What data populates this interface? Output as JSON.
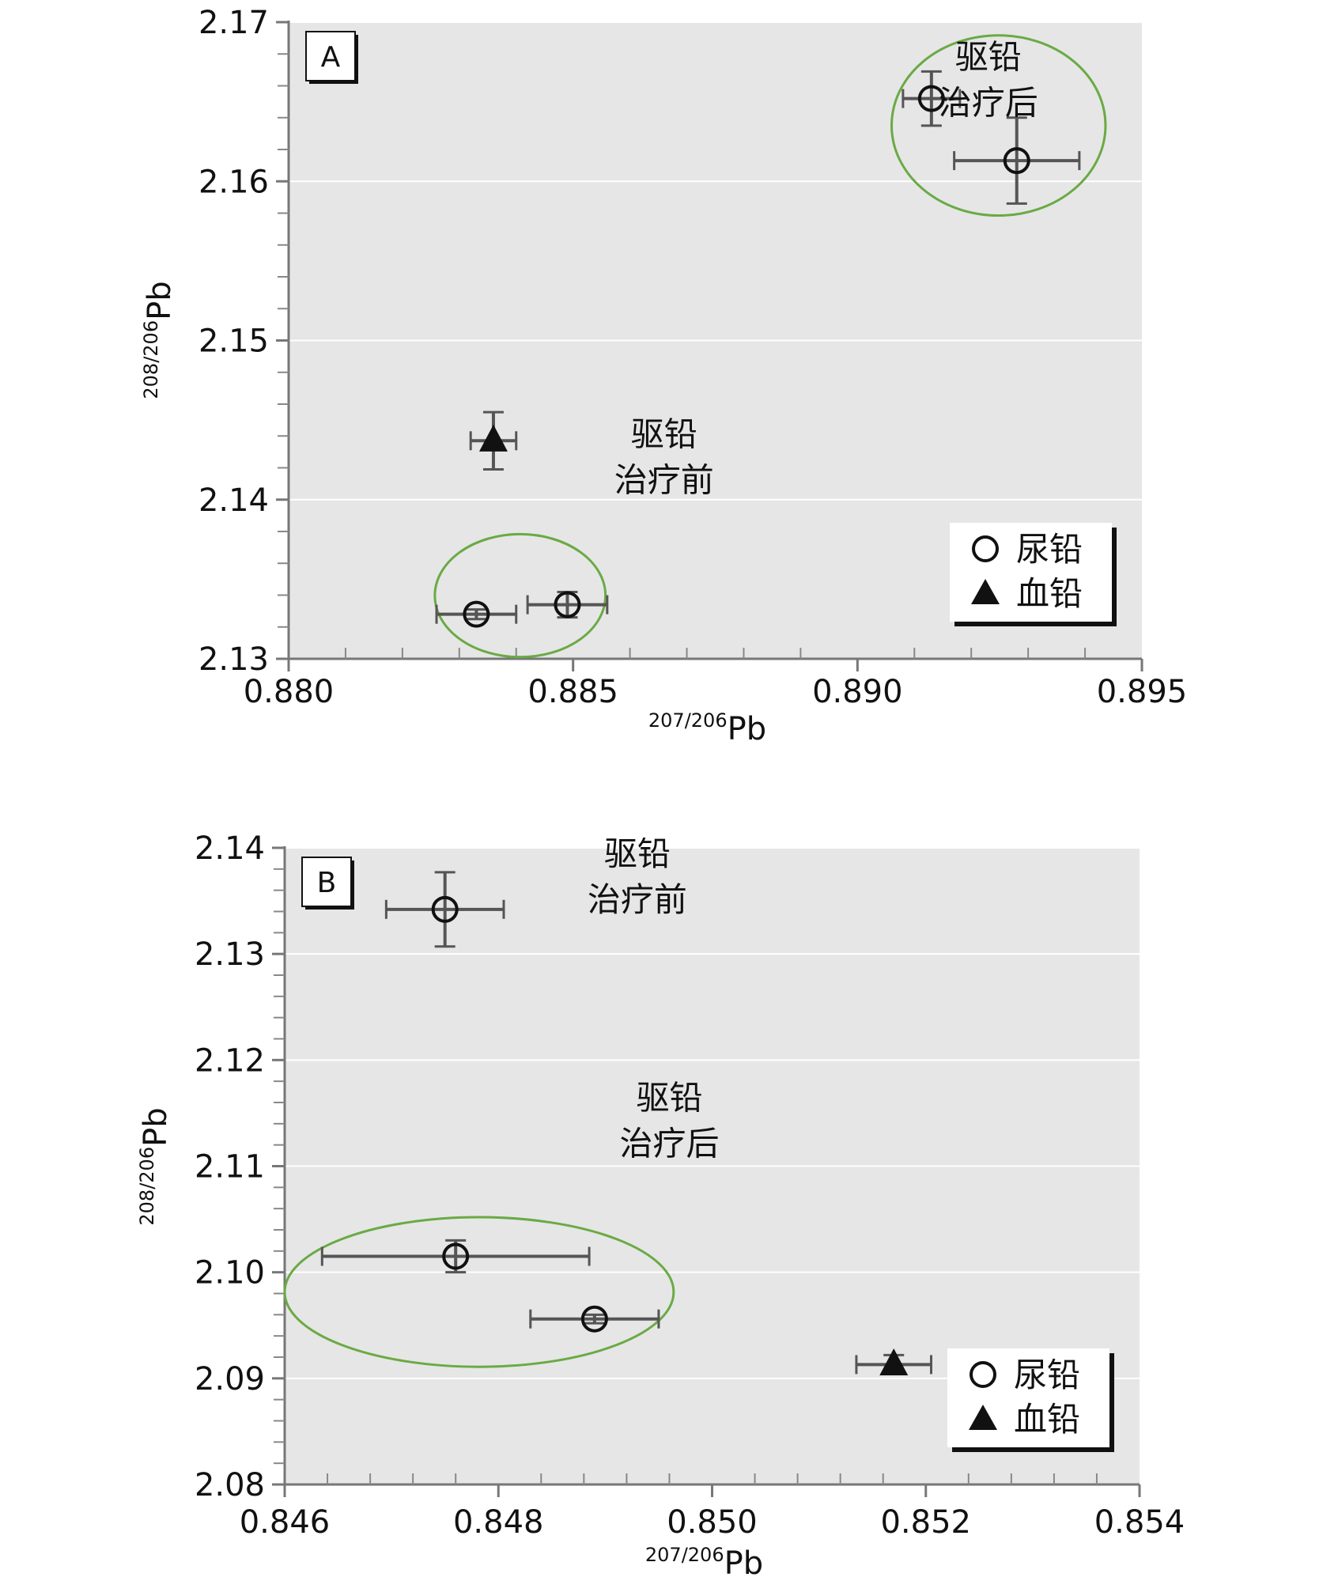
{
  "chart_data": [
    {
      "type": "scatter",
      "panel_label": "A",
      "xlabel_sup": "207/206",
      "xlabel_main": "Pb",
      "ylabel_sup": "208/206",
      "ylabel_main": "Pb",
      "xlim": [
        0.88,
        0.895
      ],
      "ylim": [
        2.13,
        2.17
      ],
      "xticks": [
        "0.880",
        "0.885",
        "0.890",
        "0.895"
      ],
      "yticks": [
        "2.13",
        "2.14",
        "2.15",
        "2.16",
        "2.17"
      ],
      "grid": true,
      "legend_position": "bottom-right",
      "legend": [
        {
          "marker": "open-circle",
          "label": "尿铅"
        },
        {
          "marker": "filled-triangle",
          "label": "血铅"
        }
      ],
      "series": [
        {
          "name": "尿铅",
          "marker": "open-circle",
          "points": [
            {
              "x": 0.8913,
              "y": 2.1652,
              "xerr": 0.0005,
              "yerr": 0.0017
            },
            {
              "x": 0.8928,
              "y": 2.1613,
              "xerr": 0.0011,
              "yerr": 0.0027
            },
            {
              "x": 0.8833,
              "y": 2.1328,
              "xerr": 0.0007,
              "yerr": 0.0003
            },
            {
              "x": 0.8849,
              "y": 2.1334,
              "xerr": 0.0007,
              "yerr": 0.0008
            }
          ]
        },
        {
          "name": "血铅",
          "marker": "filled-triangle",
          "points": [
            {
              "x": 0.8836,
              "y": 2.1437,
              "xerr": 0.0004,
              "yerr": 0.0018
            }
          ]
        }
      ],
      "annotations": [
        {
          "lines": [
            "驱铅",
            "治疗后"
          ],
          "x": 0.8923,
          "y": 2.1647
        },
        {
          "lines": [
            "驱铅",
            "治疗前"
          ],
          "x": 0.8866,
          "y": 2.141
        }
      ],
      "ellipses": [
        {
          "cx": 0.89248,
          "cy": 2.16351,
          "rx": 0.00188,
          "ry": 0.00566,
          "color": "#6aaa45"
        },
        {
          "cx": 0.88407,
          "cy": 2.13397,
          "rx": 0.0015,
          "ry": 0.00386,
          "color": "#6aaa45"
        }
      ]
    },
    {
      "type": "scatter",
      "panel_label": "B",
      "xlabel_sup": "207/206",
      "xlabel_main": "Pb",
      "ylabel_sup": "208/206",
      "ylabel_main": "Pb",
      "xlim": [
        0.846,
        0.854
      ],
      "ylim": [
        2.08,
        2.14
      ],
      "xticks": [
        "0.846",
        "0.848",
        "0.850",
        "0.852",
        "0.854"
      ],
      "yticks": [
        "2.08",
        "2.09",
        "2.10",
        "2.11",
        "2.12",
        "2.13",
        "2.14"
      ],
      "grid": true,
      "legend_position": "bottom-right",
      "legend": [
        {
          "marker": "open-circle",
          "label": "尿铅"
        },
        {
          "marker": "filled-triangle",
          "label": "血铅"
        }
      ],
      "series": [
        {
          "name": "尿铅",
          "marker": "open-circle",
          "points": [
            {
              "x": 0.8475,
              "y": 2.1342,
              "xerr": 0.00055,
              "yerr": 0.0035
            },
            {
              "x": 0.8476,
              "y": 2.1015,
              "xerr": 0.00125,
              "yerr": 0.0015
            },
            {
              "x": 0.8489,
              "y": 2.0956,
              "xerr": 0.0006,
              "yerr": 0.0004
            }
          ]
        },
        {
          "name": "血铅",
          "marker": "filled-triangle",
          "points": [
            {
              "x": 0.8517,
              "y": 2.0913,
              "xerr": 0.00035,
              "yerr": 0.0009
            }
          ]
        }
      ],
      "annotations": [
        {
          "lines": [
            "驱铅",
            "治疗前"
          ],
          "x": 0.8493,
          "y": 2.1348
        },
        {
          "lines": [
            "驱铅",
            "治疗后"
          ],
          "x": 0.8496,
          "y": 2.1118
        }
      ],
      "ellipses": [
        {
          "cx": 0.84782,
          "cy": 2.09814,
          "rx": 0.00182,
          "ry": 0.00705,
          "color": "#6aaa45"
        }
      ]
    }
  ]
}
